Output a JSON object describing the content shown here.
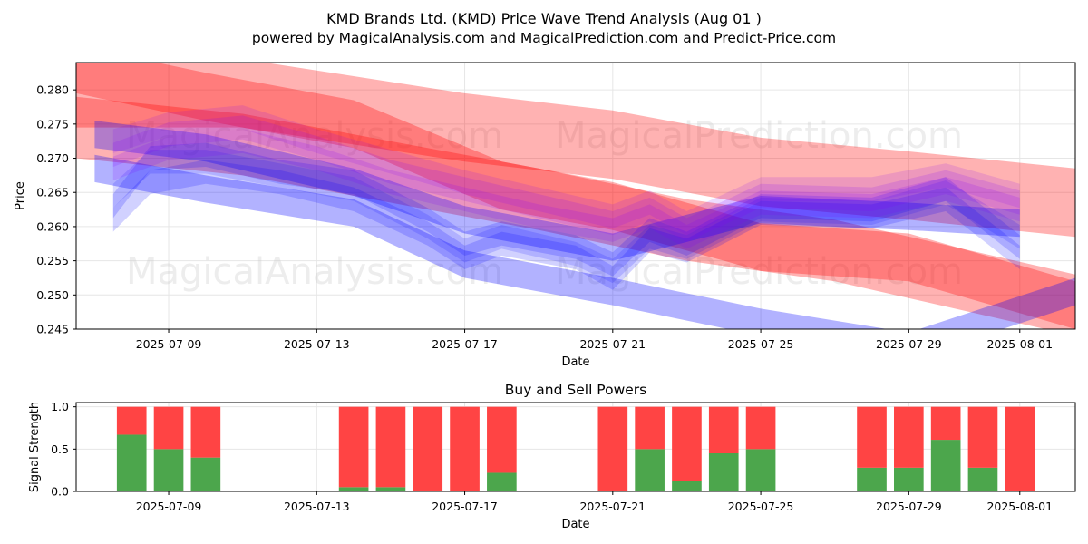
{
  "chart_data": [
    {
      "type": "area",
      "title": "KMD Brands Ltd. (KMD) Price Wave Trend Analysis (Aug 01 )",
      "subtitle": "powered by MagicalAnalysis.com and MagicalPrediction.com and Predict-Price.com",
      "xlabel": "Date",
      "ylabel": "Price",
      "ylim": [
        0.245,
        0.284
      ],
      "grid": true,
      "x_range": [
        "2025-07-06T12:00",
        "2025-08-02T12:00"
      ],
      "x_tick_labels": [
        "2025-07-09",
        "2025-07-13",
        "2025-07-17",
        "2025-07-21",
        "2025-07-25",
        "2025-07-29",
        "2025-08-01"
      ],
      "y_tick_labels": [
        "0.245",
        "0.250",
        "0.255",
        "0.260",
        "0.265",
        "0.270",
        "0.275",
        "0.280"
      ],
      "watermarks": [
        "MagicalAnalysis.com",
        "MagicalPrediction.com",
        "MagicalAnalysis.com",
        "MagicalPrediction.com"
      ],
      "series": [
        {
          "name": "red-band-upper",
          "color": "#ff0000",
          "alpha": 0.3,
          "thickness": 0.01,
          "points": [
            [
              "2025-07-06T12:00",
              0.2795
            ],
            [
              "2025-07-11",
              0.2795
            ],
            [
              "2025-07-17",
              0.2745
            ],
            [
              "2025-07-21",
              0.272
            ],
            [
              "2025-07-25",
              0.268
            ],
            [
              "2025-07-29",
              0.266
            ],
            [
              "2025-08-02T12:00",
              0.2635
            ]
          ]
        },
        {
          "name": "red-band-main",
          "color": "#ff0000",
          "alpha": 0.3,
          "thickness": 0.009,
          "points": [
            [
              "2025-07-06T12:00",
              0.2745
            ],
            [
              "2025-07-11",
              0.272
            ],
            [
              "2025-07-15",
              0.268
            ],
            [
              "2025-07-19",
              0.264
            ],
            [
              "2025-07-23",
              0.2595
            ],
            [
              "2025-07-27",
              0.2565
            ],
            [
              "2025-08-02T12:00",
              0.2485
            ]
          ]
        },
        {
          "name": "red-band-lower",
          "color": "#ff0000",
          "alpha": 0.3,
          "thickness": 0.007,
          "points": [
            [
              "2025-07-06T12:00",
              0.283
            ],
            [
              "2025-07-10",
              0.279
            ],
            [
              "2025-07-14",
              0.275
            ],
            [
              "2025-07-18",
              0.266
            ],
            [
              "2025-07-21",
              0.263
            ],
            [
              "2025-07-25",
              0.257
            ],
            [
              "2025-07-29",
              0.2555
            ],
            [
              "2025-08-02T12:00",
              0.2485
            ]
          ]
        },
        {
          "name": "blue-band-upper",
          "color": "#0000ff",
          "alpha": 0.3,
          "thickness": 0.004,
          "points": [
            [
              "2025-07-07",
              0.2735
            ],
            [
              "2025-07-10",
              0.2715
            ],
            [
              "2025-07-14",
              0.2665
            ],
            [
              "2025-07-17",
              0.261
            ],
            [
              "2025-07-21",
              0.257
            ],
            [
              "2025-07-25",
              0.2625
            ],
            [
              "2025-07-29",
              0.2615
            ],
            [
              "2025-08-01",
              0.2605
            ]
          ]
        },
        {
          "name": "blue-band-main",
          "color": "#0000ff",
          "alpha": 0.3,
          "thickness": 0.004,
          "points": [
            [
              "2025-07-07",
              0.2685
            ],
            [
              "2025-07-10",
              0.2655
            ],
            [
              "2025-07-14",
              0.262
            ],
            [
              "2025-07-17",
              0.2545
            ],
            [
              "2025-07-21",
              0.2505
            ],
            [
              "2025-07-25",
              0.246
            ],
            [
              "2025-07-29",
              0.2425
            ],
            [
              "2025-08-02T12:00",
              0.2505
            ]
          ]
        },
        {
          "name": "blue-wave-a",
          "color": "#0000ff",
          "alpha": 0.18,
          "thickness": 0.0035,
          "points": [
            [
              "2025-07-07T12:00",
              0.263
            ],
            [
              "2025-07-08T12:00",
              0.27
            ],
            [
              "2025-07-10",
              0.2705
            ],
            [
              "2025-07-12",
              0.268
            ],
            [
              "2025-07-14",
              0.2665
            ],
            [
              "2025-07-16",
              0.261
            ],
            [
              "2025-07-17",
              0.2575
            ],
            [
              "2025-07-18",
              0.259
            ],
            [
              "2025-07-20",
              0.257
            ],
            [
              "2025-07-21",
              0.2545
            ],
            [
              "2025-07-22",
              0.2595
            ],
            [
              "2025-07-23",
              0.2575
            ],
            [
              "2025-07-25",
              0.263
            ],
            [
              "2025-07-28",
              0.2625
            ],
            [
              "2025-07-30",
              0.2655
            ],
            [
              "2025-08-01",
              0.257
            ]
          ]
        },
        {
          "name": "blue-wave-b",
          "color": "#0000ff",
          "alpha": 0.18,
          "thickness": 0.0035,
          "points": [
            [
              "2025-07-07T12:00",
              0.261
            ],
            [
              "2025-07-08T12:00",
              0.2665
            ],
            [
              "2025-07-10",
              0.268
            ],
            [
              "2025-07-12",
              0.2665
            ],
            [
              "2025-07-14",
              0.264
            ],
            [
              "2025-07-16",
              0.259
            ],
            [
              "2025-07-17",
              0.2555
            ],
            [
              "2025-07-18",
              0.2575
            ],
            [
              "2025-07-20",
              0.2555
            ],
            [
              "2025-07-21",
              0.2525
            ],
            [
              "2025-07-22",
              0.258
            ],
            [
              "2025-07-23",
              0.2565
            ],
            [
              "2025-07-25",
              0.262
            ],
            [
              "2025-07-28",
              0.2615
            ],
            [
              "2025-07-30",
              0.264
            ],
            [
              "2025-08-01",
              0.2555
            ]
          ]
        },
        {
          "name": "blue-wave-c",
          "color": "#0000ff",
          "alpha": 0.15,
          "thickness": 0.0035,
          "points": [
            [
              "2025-07-07T12:00",
              0.2645
            ],
            [
              "2025-07-08T12:00",
              0.2695
            ],
            [
              "2025-07-10",
              0.2695
            ],
            [
              "2025-07-12",
              0.2675
            ],
            [
              "2025-07-14",
              0.2655
            ],
            [
              "2025-07-16",
              0.26
            ],
            [
              "2025-07-17",
              0.2565
            ],
            [
              "2025-07-18",
              0.2585
            ],
            [
              "2025-07-20",
              0.256
            ],
            [
              "2025-07-21",
              0.2535
            ],
            [
              "2025-07-22",
              0.2585
            ],
            [
              "2025-07-23",
              0.257
            ],
            [
              "2025-07-25",
              0.2625
            ],
            [
              "2025-07-28",
              0.262
            ],
            [
              "2025-07-30",
              0.265
            ],
            [
              "2025-08-01",
              0.2585
            ]
          ]
        },
        {
          "name": "purple-wave-a",
          "color": "#8000ff",
          "alpha": 0.16,
          "thickness": 0.0035,
          "points": [
            [
              "2025-07-07T12:00",
              0.2705
            ],
            [
              "2025-07-09",
              0.2735
            ],
            [
              "2025-07-11",
              0.2745
            ],
            [
              "2025-07-13",
              0.2715
            ],
            [
              "2025-07-15",
              0.268
            ],
            [
              "2025-07-17",
              0.2655
            ],
            [
              "2025-07-19",
              0.263
            ],
            [
              "2025-07-21",
              0.2605
            ],
            [
              "2025-07-22",
              0.2625
            ],
            [
              "2025-07-23",
              0.2595
            ],
            [
              "2025-07-25",
              0.2645
            ],
            [
              "2025-07-28",
              0.264
            ],
            [
              "2025-07-30",
              0.2665
            ],
            [
              "2025-08-01",
              0.2635
            ]
          ]
        },
        {
          "name": "purple-wave-b",
          "color": "#8000ff",
          "alpha": 0.16,
          "thickness": 0.0035,
          "points": [
            [
              "2025-07-07T12:00",
              0.2685
            ],
            [
              "2025-07-09",
              0.2715
            ],
            [
              "2025-07-11",
              0.2725
            ],
            [
              "2025-07-13",
              0.27
            ],
            [
              "2025-07-15",
              0.2665
            ],
            [
              "2025-07-17",
              0.264
            ],
            [
              "2025-07-19",
              0.2615
            ],
            [
              "2025-07-21",
              0.2595
            ],
            [
              "2025-07-22",
              0.2615
            ],
            [
              "2025-07-23",
              0.2585
            ],
            [
              "2025-07-25",
              0.2635
            ],
            [
              "2025-07-28",
              0.263
            ],
            [
              "2025-07-30",
              0.2655
            ],
            [
              "2025-08-01",
              0.2625
            ]
          ]
        },
        {
          "name": "purple-wave-c",
          "color": "#8000ff",
          "alpha": 0.14,
          "thickness": 0.0035,
          "points": [
            [
              "2025-07-07T12:00",
              0.2725
            ],
            [
              "2025-07-09",
              0.275
            ],
            [
              "2025-07-11",
              0.276
            ],
            [
              "2025-07-13",
              0.2725
            ],
            [
              "2025-07-15",
              0.2695
            ],
            [
              "2025-07-17",
              0.2665
            ],
            [
              "2025-07-19",
              0.264
            ],
            [
              "2025-07-21",
              0.2615
            ],
            [
              "2025-07-22",
              0.2635
            ],
            [
              "2025-07-23",
              0.2605
            ],
            [
              "2025-07-25",
              0.2655
            ],
            [
              "2025-07-28",
              0.2655
            ],
            [
              "2025-07-30",
              0.2675
            ],
            [
              "2025-08-01",
              0.2645
            ]
          ]
        }
      ]
    },
    {
      "type": "bar",
      "title": "Buy and Sell Powers",
      "xlabel": "Date",
      "ylabel": "Signal Strength",
      "ylim": [
        0,
        1.05
      ],
      "grid": true,
      "x_range": [
        "2025-07-06T12:00",
        "2025-08-02T12:00"
      ],
      "x_tick_labels": [
        "2025-07-09",
        "2025-07-13",
        "2025-07-17",
        "2025-07-21",
        "2025-07-25",
        "2025-07-29",
        "2025-08-01"
      ],
      "y_tick_labels": [
        "0.0",
        "0.5",
        "1.0"
      ],
      "buy_color": "#4ca64c",
      "sell_color": "#ff4444",
      "dates": [
        "2025-07-08",
        "2025-07-09",
        "2025-07-10",
        "2025-07-14",
        "2025-07-15",
        "2025-07-16",
        "2025-07-17",
        "2025-07-18",
        "2025-07-21",
        "2025-07-22",
        "2025-07-23",
        "2025-07-24",
        "2025-07-25",
        "2025-07-28",
        "2025-07-29",
        "2025-07-30",
        "2025-07-31",
        "2025-08-01"
      ],
      "buy": [
        0.67,
        0.5,
        0.4,
        0.05,
        0.05,
        0.0,
        0.0,
        0.22,
        0.0,
        0.5,
        0.12,
        0.45,
        0.5,
        0.28,
        0.28,
        0.61,
        0.28,
        0.0
      ],
      "sell": [
        0.33,
        0.5,
        0.6,
        0.95,
        0.95,
        1.0,
        1.0,
        0.78,
        1.0,
        0.5,
        0.88,
        0.55,
        0.5,
        0.72,
        0.72,
        0.39,
        0.72,
        1.0
      ]
    }
  ]
}
